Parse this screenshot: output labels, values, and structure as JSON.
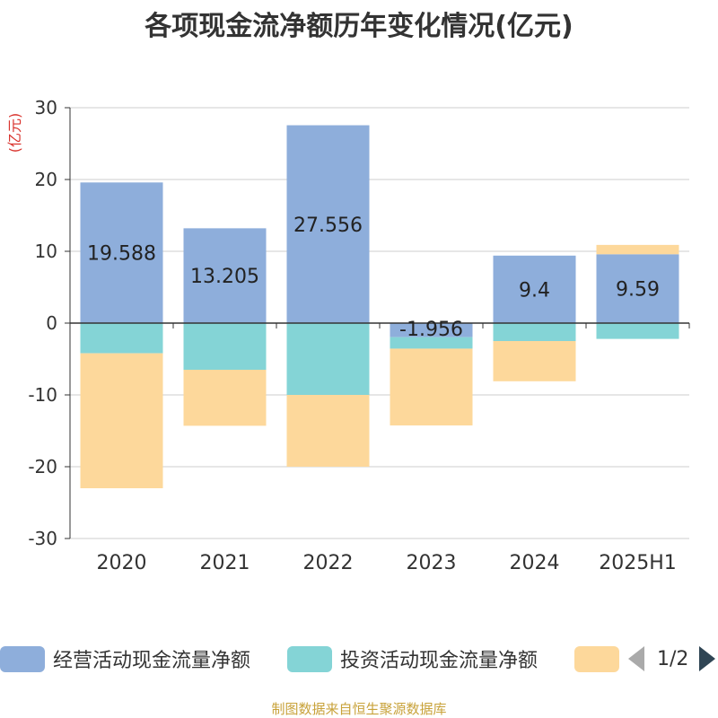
{
  "title": "各项现金流净额历年变化情况(亿元)",
  "source": "制图数据来自恒生聚源数据库",
  "legend_pager": "1/2",
  "chart_data": {
    "type": "bar",
    "stacked": true,
    "title": "各项现金流净额历年变化情况(亿元)",
    "ylabel": "(亿元)",
    "ylim": [
      -30,
      30
    ],
    "yticks": [
      30,
      20,
      10,
      0,
      -10,
      -20,
      -30
    ],
    "grid": true,
    "legend_position": "bottom",
    "categories": [
      "2020",
      "2021",
      "2022",
      "2023",
      "2024",
      "2025H1"
    ],
    "series": [
      {
        "name": "经营活动现金流量净额",
        "color": "#8eaedb",
        "values": [
          19.588,
          13.205,
          27.556,
          -1.956,
          9.4,
          9.59
        ],
        "labels": [
          "19.588",
          "13.205",
          "27.556",
          "-1.956",
          "9.4",
          "9.59"
        ]
      },
      {
        "name": "投资活动现金流量净额",
        "color": "#84d4d6",
        "values": [
          -4.2,
          -6.5,
          -10.0,
          -1.6,
          -2.5,
          -2.2
        ]
      },
      {
        "name": "",
        "color": "#fdd89b",
        "values": [
          -18.8,
          -7.8,
          -10.0,
          -10.7,
          -5.6,
          1.3
        ]
      }
    ]
  }
}
